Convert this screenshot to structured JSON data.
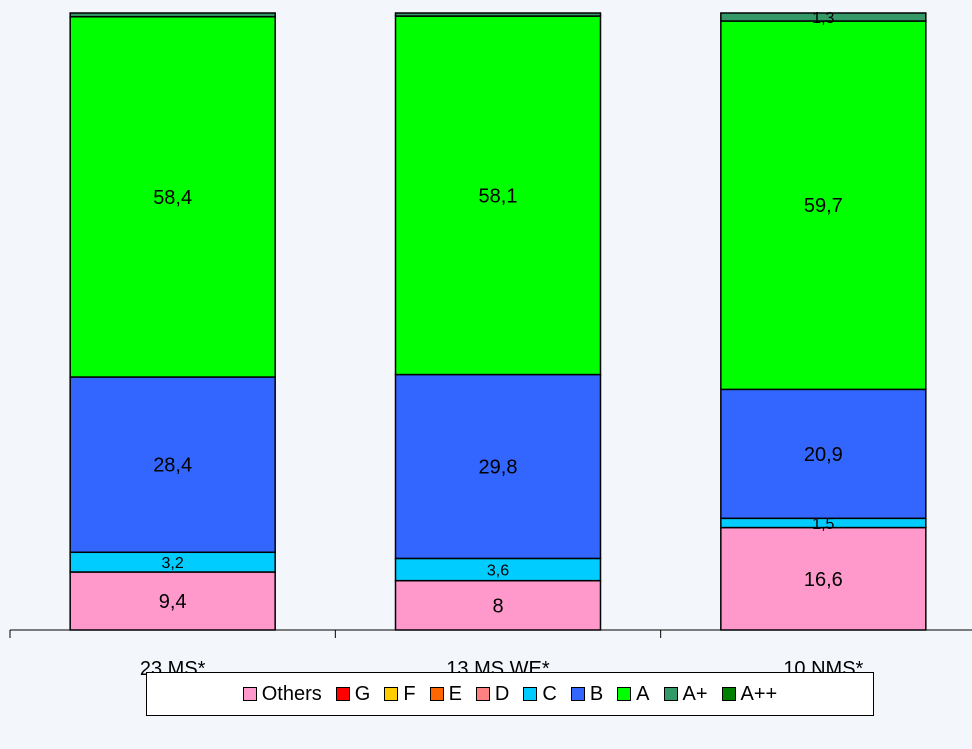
{
  "chart_data": {
    "type": "bar",
    "stacked": true,
    "categories": [
      "23 MS*",
      "13 MS WE*",
      "10 NMS*"
    ],
    "ylim": [
      0,
      100
    ],
    "grid": false,
    "legend_position": "bottom",
    "series": [
      {
        "name": "Others",
        "color": "#ff99cc",
        "values": [
          9.4,
          8,
          16.6
        ],
        "labels": [
          "9,4",
          "8",
          "16,6"
        ]
      },
      {
        "name": "G",
        "color": "#ff0000",
        "values": [
          0,
          0,
          0
        ],
        "labels": [
          "",
          "",
          ""
        ]
      },
      {
        "name": "F",
        "color": "#ffcc00",
        "values": [
          0,
          0,
          0
        ],
        "labels": [
          "",
          "",
          ""
        ]
      },
      {
        "name": "E",
        "color": "#ff6600",
        "values": [
          0,
          0,
          0
        ],
        "labels": [
          "",
          "",
          ""
        ]
      },
      {
        "name": "D",
        "color": "#ff8080",
        "values": [
          0,
          0,
          0
        ],
        "labels": [
          "",
          "",
          ""
        ]
      },
      {
        "name": "C",
        "color": "#00ccff",
        "values": [
          3.2,
          3.6,
          1.5
        ],
        "labels": [
          "3,2",
          "3,6",
          "1,5"
        ]
      },
      {
        "name": "B",
        "color": "#3366ff",
        "values": [
          28.4,
          29.8,
          20.9
        ],
        "labels": [
          "28,4",
          "29,8",
          "20,9"
        ]
      },
      {
        "name": "A",
        "color": "#00ff00",
        "values": [
          58.4,
          58.1,
          59.7
        ],
        "labels": [
          "58,4",
          "58,1",
          "59,7"
        ]
      },
      {
        "name": "A+",
        "color": "#339966",
        "values": [
          0.6,
          0.5,
          1.3
        ],
        "labels": [
          "",
          "",
          "1,3"
        ]
      },
      {
        "name": "A++",
        "color": "#008000",
        "values": [
          0,
          0,
          0
        ],
        "labels": [
          "",
          "",
          ""
        ]
      }
    ]
  }
}
